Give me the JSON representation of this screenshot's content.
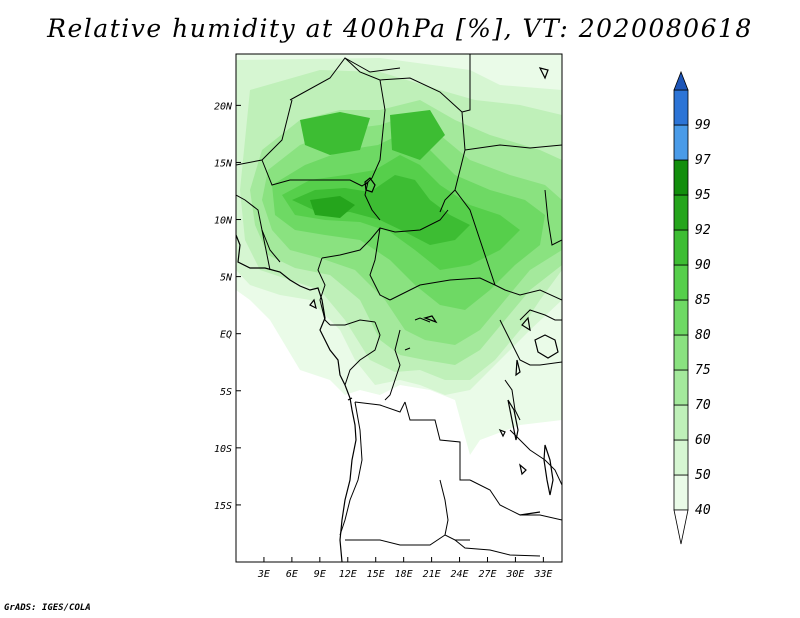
{
  "title": "Relative humidity at 400hPa [%], VT: 2020080618",
  "credit": "GrADS: IGES/COLA",
  "map": {
    "lon_range": [
      0,
      35
    ],
    "lat_range": [
      -20,
      24.5
    ],
    "x_ticks": [
      {
        "value": 3,
        "label": "3E"
      },
      {
        "value": 6,
        "label": "6E"
      },
      {
        "value": 9,
        "label": "9E"
      },
      {
        "value": 12,
        "label": "12E"
      },
      {
        "value": 15,
        "label": "15E"
      },
      {
        "value": 18,
        "label": "18E"
      },
      {
        "value": 21,
        "label": "21E"
      },
      {
        "value": 24,
        "label": "24E"
      },
      {
        "value": 27,
        "label": "27E"
      },
      {
        "value": 30,
        "label": "30E"
      },
      {
        "value": 33,
        "label": "33E"
      }
    ],
    "y_ticks": [
      {
        "value": 20,
        "label": "20N"
      },
      {
        "value": 15,
        "label": "15N"
      },
      {
        "value": 10,
        "label": "10N"
      },
      {
        "value": 5,
        "label": "5N"
      },
      {
        "value": 0,
        "label": "EQ"
      },
      {
        "value": -5,
        "label": "5S"
      },
      {
        "value": -10,
        "label": "10S"
      },
      {
        "value": -15,
        "label": "15S"
      }
    ]
  },
  "colorbar": {
    "levels": [
      {
        "label": "40",
        "color": "#eafbe8"
      },
      {
        "label": "50",
        "color": "#d6f6d2"
      },
      {
        "label": "60",
        "color": "#bff0b9"
      },
      {
        "label": "70",
        "color": "#a4e99c"
      },
      {
        "label": "75",
        "color": "#8ae280"
      },
      {
        "label": "80",
        "color": "#6ed964"
      },
      {
        "label": "85",
        "color": "#56cf4b"
      },
      {
        "label": "90",
        "color": "#3dbd33"
      },
      {
        "label": "92",
        "color": "#25a51c"
      },
      {
        "label": "95",
        "color": "#128e0c"
      },
      {
        "label": "97",
        "color": "#4a9be8"
      },
      {
        "label": "99",
        "color": "#2c74d6"
      }
    ],
    "top_color": "#1e56b8"
  }
}
